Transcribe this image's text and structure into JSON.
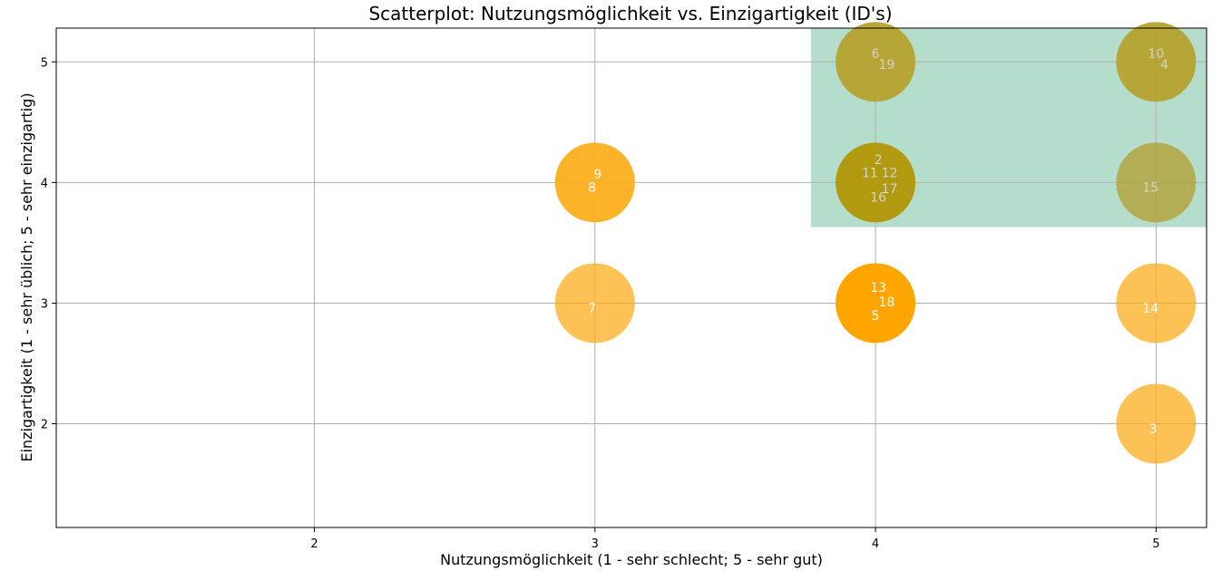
{
  "chart_data": {
    "type": "scatter",
    "title": "Scatterplot: Nutzungsmöglichkeit vs. Einzigartigkeit (ID's)",
    "xlabel": "Nutzungsmöglichkeit (1 - sehr schlecht; 5 - sehr gut)",
    "ylabel": "Einzigartigkeit (1 - sehr üblich; 5 - sehr einzigartig)",
    "xlim": [
      1.08,
      5.18
    ],
    "ylim": [
      1.14,
      5.28
    ],
    "xticks": [
      2,
      3,
      4,
      5
    ],
    "yticks": [
      2,
      3,
      4,
      5
    ],
    "grid": true,
    "highlight_region": {
      "x": [
        3.77,
        5.18
      ],
      "y": [
        3.63,
        5.28
      ],
      "color": "#b5ddcc"
    },
    "marker_colors": {
      "orange": "#fcae1e",
      "olive": "#b5a12a",
      "grey_olive": "#b3a53f"
    },
    "label_colors": {
      "light": "#ffffff",
      "muted": "#cfd8c8"
    },
    "points": [
      {
        "x": 3,
        "y": 4,
        "group": "orange",
        "labels": [
          {
            "id": "9",
            "dx": 0.01,
            "dy": 0.07
          },
          {
            "id": "8",
            "dx": -0.01,
            "dy": -0.04
          }
        ]
      },
      {
        "x": 3,
        "y": 3,
        "group": "orange_light",
        "labels": [
          {
            "id": "7",
            "dx": -0.01,
            "dy": -0.04
          }
        ]
      },
      {
        "x": 4,
        "y": 5,
        "group": "olive",
        "labels": [
          {
            "id": "6",
            "dx": 0.0,
            "dy": 0.07
          },
          {
            "id": "19",
            "dx": 0.04,
            "dy": -0.02
          }
        ]
      },
      {
        "x": 4,
        "y": 4,
        "group": "olive_dark",
        "labels": [
          {
            "id": "2",
            "dx": 0.01,
            "dy": 0.19
          },
          {
            "id": "11",
            "dx": -0.02,
            "dy": 0.08
          },
          {
            "id": "12",
            "dx": 0.05,
            "dy": 0.08
          },
          {
            "id": "17",
            "dx": 0.05,
            "dy": -0.05
          },
          {
            "id": "16",
            "dx": 0.01,
            "dy": -0.12
          }
        ]
      },
      {
        "x": 4,
        "y": 3,
        "group": "orange_dark",
        "labels": [
          {
            "id": "13",
            "dx": 0.01,
            "dy": 0.13
          },
          {
            "id": "18",
            "dx": 0.04,
            "dy": 0.01
          },
          {
            "id": "5",
            "dx": 0.0,
            "dy": -0.1
          }
        ]
      },
      {
        "x": 5,
        "y": 5,
        "group": "olive",
        "labels": [
          {
            "id": "10",
            "dx": 0.0,
            "dy": 0.07
          },
          {
            "id": "4",
            "dx": 0.03,
            "dy": -0.02
          }
        ]
      },
      {
        "x": 5,
        "y": 4,
        "group": "grey_olive",
        "labels": [
          {
            "id": "15",
            "dx": -0.02,
            "dy": -0.04
          }
        ]
      },
      {
        "x": 5,
        "y": 3,
        "group": "orange_light",
        "labels": [
          {
            "id": "14",
            "dx": -0.02,
            "dy": -0.04
          }
        ]
      },
      {
        "x": 5,
        "y": 2,
        "group": "orange_light",
        "labels": [
          {
            "id": "3",
            "dx": -0.01,
            "dy": -0.04
          }
        ]
      }
    ]
  }
}
